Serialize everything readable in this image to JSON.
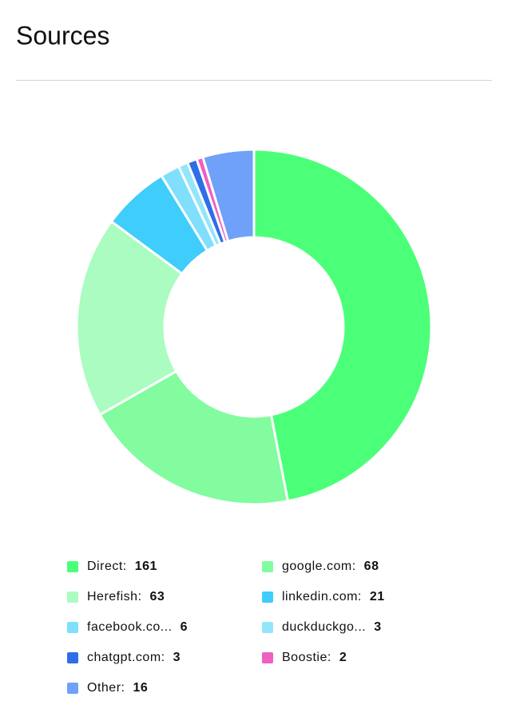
{
  "header": {
    "title": "Sources"
  },
  "chart_data": {
    "type": "donut",
    "categories": [
      "Direct:",
      "google.com:",
      "Herefish:",
      "linkedin.com:",
      "facebook.co...",
      "duckduckgo...",
      "chatgpt.com:",
      "Boostie:",
      "Other:"
    ],
    "values": [
      161,
      68,
      63,
      21,
      6,
      3,
      3,
      2,
      16
    ],
    "colors": [
      "#4cff79",
      "#82fc9f",
      "#abfcc0",
      "#3fcdfc",
      "#7fdffd",
      "#92e6fb",
      "#2e6ee8",
      "#ef5fc0",
      "#6fa1f8"
    ],
    "legend": "bottom"
  }
}
